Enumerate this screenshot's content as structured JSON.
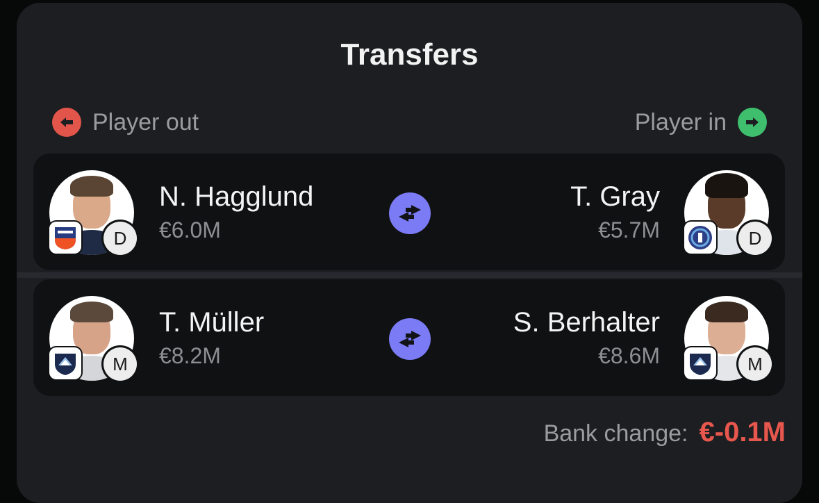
{
  "title": "Transfers",
  "header": {
    "out_label": "Player out",
    "in_label": "Player in"
  },
  "transfers": [
    {
      "out": {
        "name": "N. Hagglund",
        "price": "€6.0M",
        "position": "D",
        "club": "FC Cincinnati"
      },
      "in": {
        "name": "T. Gray",
        "price": "€5.7M",
        "position": "D",
        "club": "New York City FC"
      }
    },
    {
      "out": {
        "name": "T. Müller",
        "price": "€8.2M",
        "position": "M",
        "club": "Vancouver Whitecaps FC"
      },
      "in": {
        "name": "S. Berhalter",
        "price": "€8.6M",
        "position": "M",
        "club": "Vancouver Whitecaps FC"
      }
    }
  ],
  "bank": {
    "label": "Bank change:",
    "value": "€-0.1M"
  },
  "colors": {
    "out_accent": "#e2554a",
    "in_accent": "#3fbf6e",
    "swap_accent": "#7b7bf5",
    "negative": "#e8574d"
  },
  "icons": {
    "out": "arrow-left-circle-icon",
    "in": "arrow-right-circle-icon",
    "swap": "swap-arrows-icon"
  }
}
